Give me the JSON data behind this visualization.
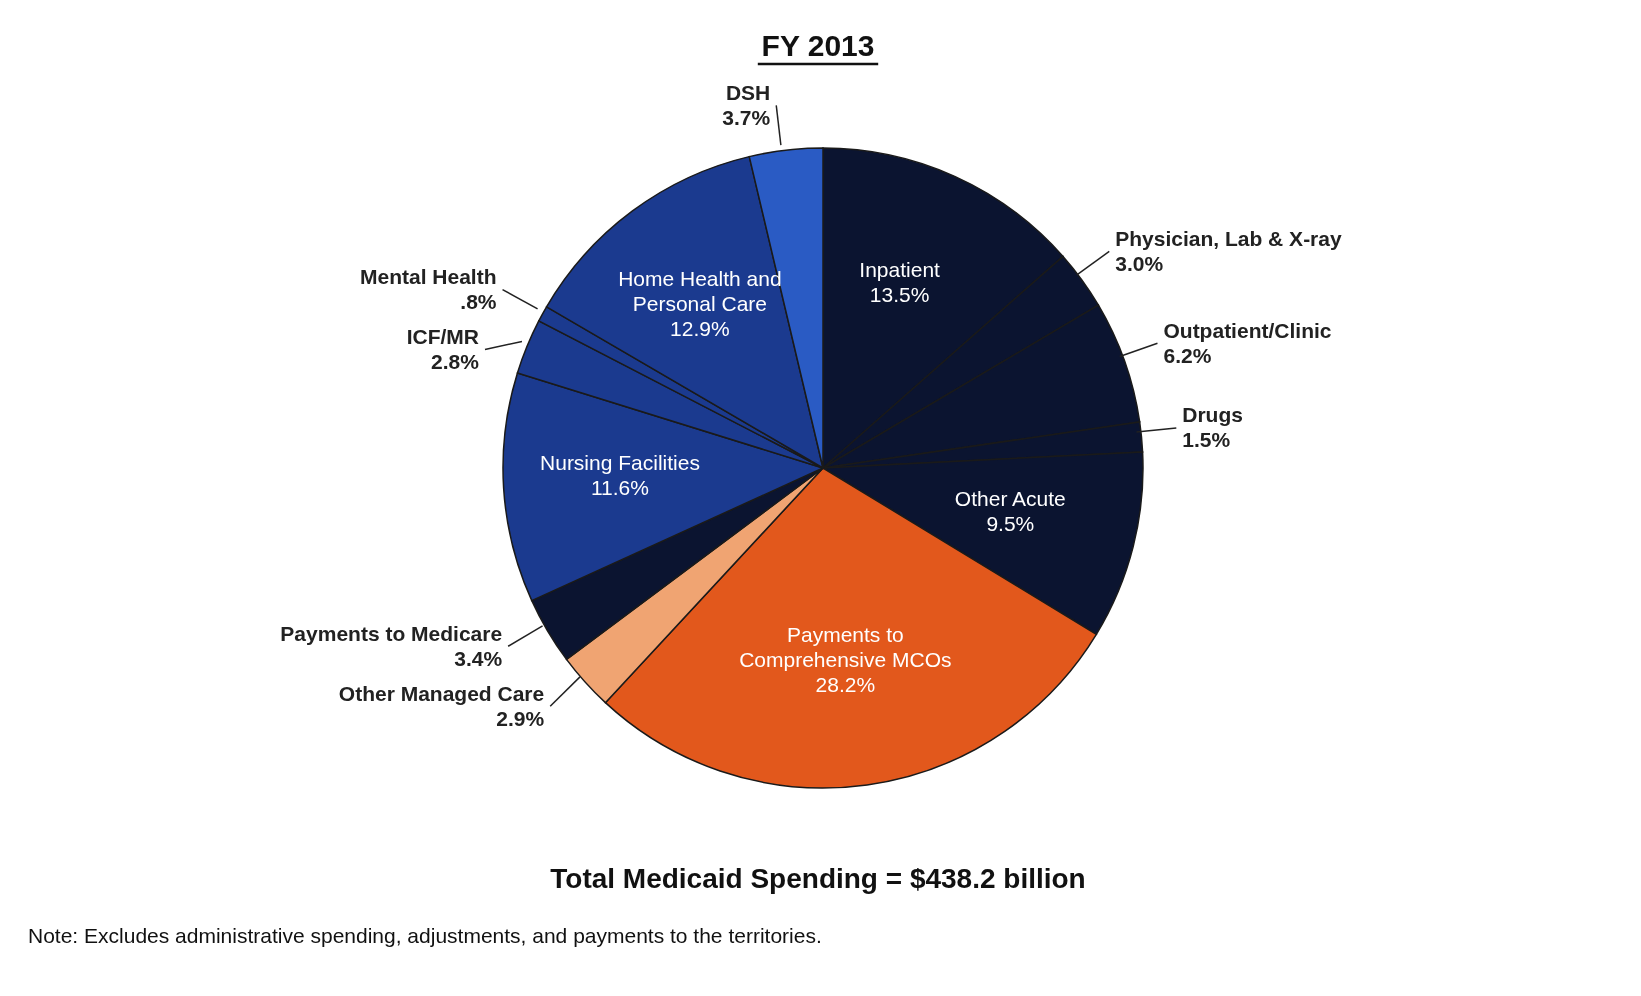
{
  "chart_data": {
    "type": "pie",
    "title": "FY 2013",
    "categories": [
      "Inpatient",
      "Physician, Lab & X-ray",
      "Outpatient/Clinic",
      "Drugs",
      "Other Acute",
      "Payments to Comprehensive MCOs",
      "Other Managed Care",
      "Payments to Medicare",
      "Nursing Facilities",
      "ICF/MR",
      "Mental Health",
      "Home Health and Personal Care",
      "DSH"
    ],
    "values": [
      13.5,
      3.0,
      6.2,
      1.5,
      9.5,
      28.2,
      2.9,
      3.4,
      11.6,
      2.8,
      0.8,
      12.9,
      3.7
    ],
    "value_labels": [
      "13.5%",
      "3.0%",
      "6.2%",
      "1.5%",
      "9.5%",
      "28.2%",
      "2.9%",
      "3.4%",
      "11.6%",
      "2.8%",
      ".8%",
      "12.9%",
      "3.7%"
    ],
    "colors": [
      "#0b1430",
      "#0b1430",
      "#0b1430",
      "#0b1430",
      "#0b1430",
      "#e2581c",
      "#f0a472",
      "#0b1430",
      "#1b3a8f",
      "#1b3a8f",
      "#1b3a8f",
      "#1b3a8f",
      "#2a5bc4"
    ],
    "annotations": [
      "Total Medicaid Spending = $438.2 billion",
      "Note: Excludes administrative spending, adjustments, and payments to the territories."
    ]
  }
}
